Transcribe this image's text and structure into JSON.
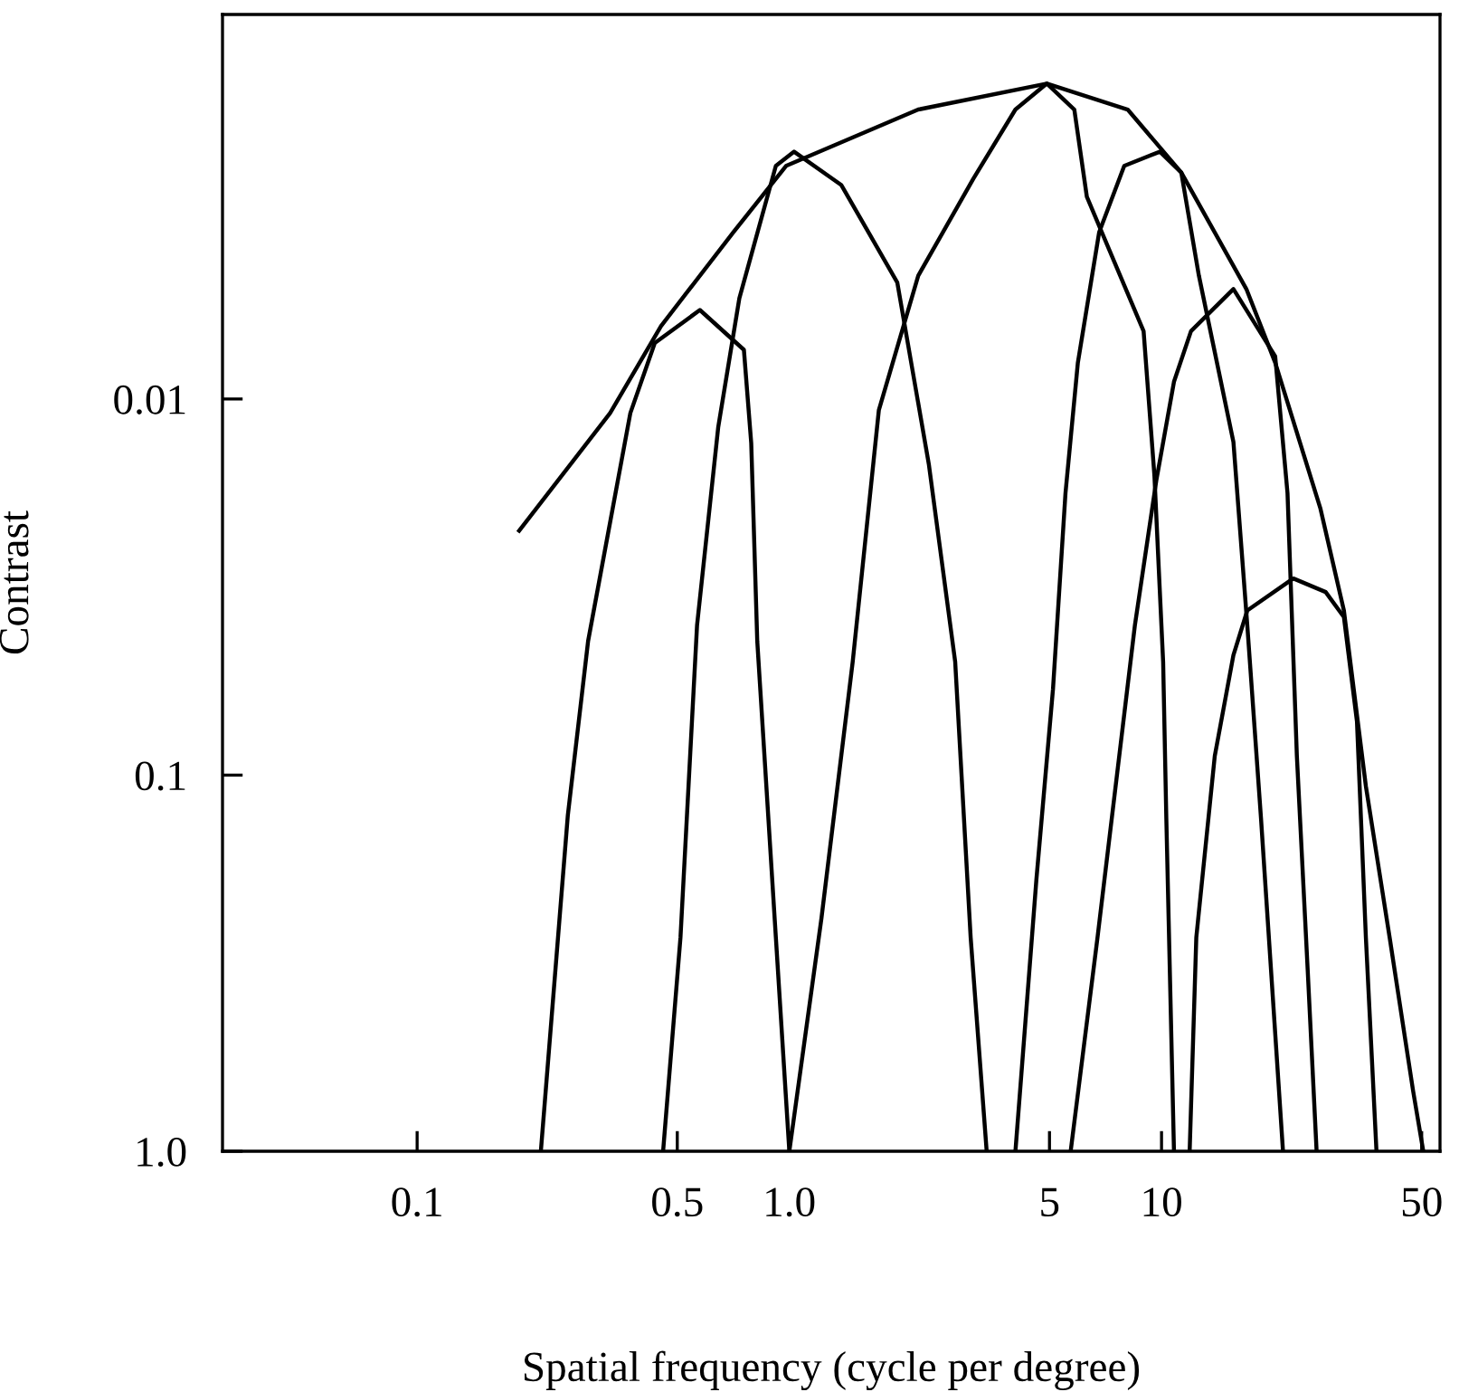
{
  "chart_data": {
    "type": "line",
    "xlabel": "Spatial frequency (cycle per degree)",
    "ylabel": "Contrast",
    "log": "xy",
    "grid": false,
    "legend": false,
    "marker": "none",
    "line_style": "solid",
    "xlim": [
      0.03,
      56
    ],
    "ylim": [
      1.0,
      0.00095
    ],
    "xticks": [
      0.1,
      0.5,
      {
        "value": 1,
        "label": "1.0"
      },
      5,
      10,
      50
    ],
    "yticks": [
      0.01,
      0.1,
      {
        "value": 1,
        "label": "1.0"
      }
    ],
    "series": [
      {
        "color": "#000000",
        "x": [
          0.188,
          0.33,
          0.452,
          0.708,
          0.98,
          2.22,
          4.92,
          8.11,
          11.3,
          16.9,
          20.2,
          26.7,
          30.9,
          35.4,
          41.0,
          47.4,
          50.5
        ],
        "values": [
          0.0224,
          0.0109,
          0.0064,
          0.0036,
          0.0024,
          0.0017,
          0.00145,
          0.0017,
          0.0025,
          0.0051,
          0.008,
          0.0195,
          0.0365,
          0.107,
          0.27,
          0.69,
          1.0
        ]
      },
      {
        "color": "#000000",
        "x": [
          0.215,
          0.254,
          0.288,
          0.374,
          0.435,
          0.575,
          0.755,
          0.79,
          0.82,
          0.92,
          1.0
        ],
        "values": [
          1.0,
          0.128,
          0.044,
          0.0109,
          0.0071,
          0.0058,
          0.0074,
          0.0131,
          0.044,
          0.27,
          1.0
        ]
      },
      {
        "color": "#000000",
        "x": [
          0.458,
          0.51,
          0.565,
          0.644,
          0.734,
          0.92,
          1.03,
          1.38,
          1.95,
          2.37,
          2.79,
          3.07,
          3.39
        ],
        "values": [
          1.0,
          0.27,
          0.04,
          0.0119,
          0.0054,
          0.0024,
          0.0022,
          0.0027,
          0.0049,
          0.0149,
          0.05,
          0.27,
          1.0
        ]
      },
      {
        "color": "#000000",
        "x": [
          1.0,
          1.22,
          1.48,
          1.74,
          2.22,
          3.12,
          4.05,
          4.92,
          5.83,
          6.3,
          8.95,
          9.57,
          10.1,
          10.3,
          10.8
        ],
        "values": [
          1.0,
          0.24,
          0.05,
          0.0107,
          0.0047,
          0.0026,
          0.0017,
          0.00145,
          0.0017,
          0.0029,
          0.0066,
          0.016,
          0.05,
          0.13,
          1.0
        ]
      },
      {
        "color": "#000000",
        "x": [
          4.05,
          4.61,
          5.11,
          5.52,
          5.96,
          6.8,
          7.94,
          9.9,
          11.3,
          12.6,
          15.6,
          17.0,
          18.5,
          21.2
        ],
        "values": [
          1.0,
          0.19,
          0.059,
          0.0178,
          0.008,
          0.0036,
          0.0024,
          0.0022,
          0.0025,
          0.0047,
          0.013,
          0.04,
          0.13,
          1.0
        ]
      },
      {
        "color": "#000000",
        "x": [
          5.7,
          6.73,
          8.48,
          9.68,
          10.8,
          12.0,
          15.6,
          20.2,
          21.8,
          23.1,
          24.7,
          26.1
        ],
        "values": [
          1.0,
          0.27,
          0.04,
          0.0165,
          0.009,
          0.0066,
          0.0051,
          0.0077,
          0.0178,
          0.089,
          0.33,
          1.0
        ]
      },
      {
        "color": "#000000",
        "x": [
          11.9,
          12.4,
          13.9,
          15.6,
          17.0,
          22.6,
          27.6,
          30.9,
          33.5,
          35.4,
          37.8
        ],
        "values": [
          1.0,
          0.27,
          0.089,
          0.048,
          0.0365,
          0.03,
          0.0326,
          0.038,
          0.072,
          0.27,
          1.0
        ]
      }
    ]
  }
}
